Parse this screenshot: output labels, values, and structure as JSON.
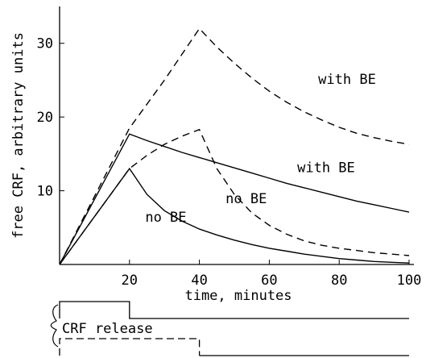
{
  "chart_data": {
    "type": "line",
    "xlabel": "time, minutes",
    "ylabel": "free CRF, arbitrary units",
    "xlim": [
      0,
      100
    ],
    "ylim": [
      0,
      35
    ],
    "xticks": [
      20,
      40,
      60,
      80,
      100
    ],
    "yticks": [
      10,
      20,
      30
    ],
    "grid": false,
    "series": [
      {
        "name": "with BE",
        "style": "dashed",
        "points": [
          [
            0,
            0
          ],
          [
            20,
            18.5
          ],
          [
            30,
            25
          ],
          [
            40,
            32
          ],
          [
            45,
            29.5
          ],
          [
            50,
            27.3
          ],
          [
            55,
            25.3
          ],
          [
            60,
            23.5
          ],
          [
            65,
            22
          ],
          [
            70,
            20.7
          ],
          [
            75,
            19.6
          ],
          [
            80,
            18.6
          ],
          [
            85,
            17.8
          ],
          [
            90,
            17.2
          ],
          [
            95,
            16.7
          ],
          [
            100,
            16.3
          ]
        ]
      },
      {
        "name": "with BE",
        "style": "solid",
        "points": [
          [
            0,
            0
          ],
          [
            20,
            17.7
          ],
          [
            25,
            16.8
          ],
          [
            30,
            16
          ],
          [
            35,
            15.2
          ],
          [
            40,
            14.5
          ],
          [
            45,
            13.8
          ],
          [
            50,
            13.1
          ],
          [
            55,
            12.4
          ],
          [
            60,
            11.7
          ],
          [
            65,
            11
          ],
          [
            70,
            10.4
          ],
          [
            75,
            9.8
          ],
          [
            80,
            9.2
          ],
          [
            85,
            8.6
          ],
          [
            90,
            8.1
          ],
          [
            95,
            7.6
          ],
          [
            100,
            7.1
          ]
        ]
      },
      {
        "name": "no BE",
        "style": "dashed",
        "points": [
          [
            0,
            0
          ],
          [
            20,
            13
          ],
          [
            25,
            14.8
          ],
          [
            30,
            16.3
          ],
          [
            35,
            17.4
          ],
          [
            40,
            18.3
          ],
          [
            45,
            13
          ],
          [
            50,
            9.5
          ],
          [
            55,
            7
          ],
          [
            60,
            5.3
          ],
          [
            65,
            4.1
          ],
          [
            70,
            3.2
          ],
          [
            75,
            2.6
          ],
          [
            80,
            2.2
          ],
          [
            85,
            1.9
          ],
          [
            90,
            1.6
          ],
          [
            95,
            1.4
          ],
          [
            100,
            1.2
          ]
        ]
      },
      {
        "name": "no BE",
        "style": "solid",
        "points": [
          [
            0,
            0
          ],
          [
            20,
            13
          ],
          [
            25,
            9.5
          ],
          [
            30,
            7.3
          ],
          [
            35,
            5.9
          ],
          [
            40,
            4.8
          ],
          [
            45,
            4
          ],
          [
            50,
            3.3
          ],
          [
            55,
            2.7
          ],
          [
            60,
            2.2
          ],
          [
            65,
            1.8
          ],
          [
            70,
            1.4
          ],
          [
            75,
            1.1
          ],
          [
            80,
            0.8
          ],
          [
            85,
            0.6
          ],
          [
            90,
            0.4
          ],
          [
            95,
            0.3
          ],
          [
            100,
            0.2
          ]
        ]
      }
    ],
    "annotations": [
      {
        "text": "with BE",
        "x": 74,
        "y": 24.5
      },
      {
        "text": "with BE",
        "x": 68,
        "y": 12.5
      },
      {
        "text": "no BE",
        "x": 47.5,
        "y": 8.3
      },
      {
        "text": "no BE",
        "x": 24.5,
        "y": 5.8
      }
    ]
  },
  "release_legend": {
    "label": "CRF release",
    "solid_pulse_end": 20,
    "dashed_pulse_end": 40
  }
}
